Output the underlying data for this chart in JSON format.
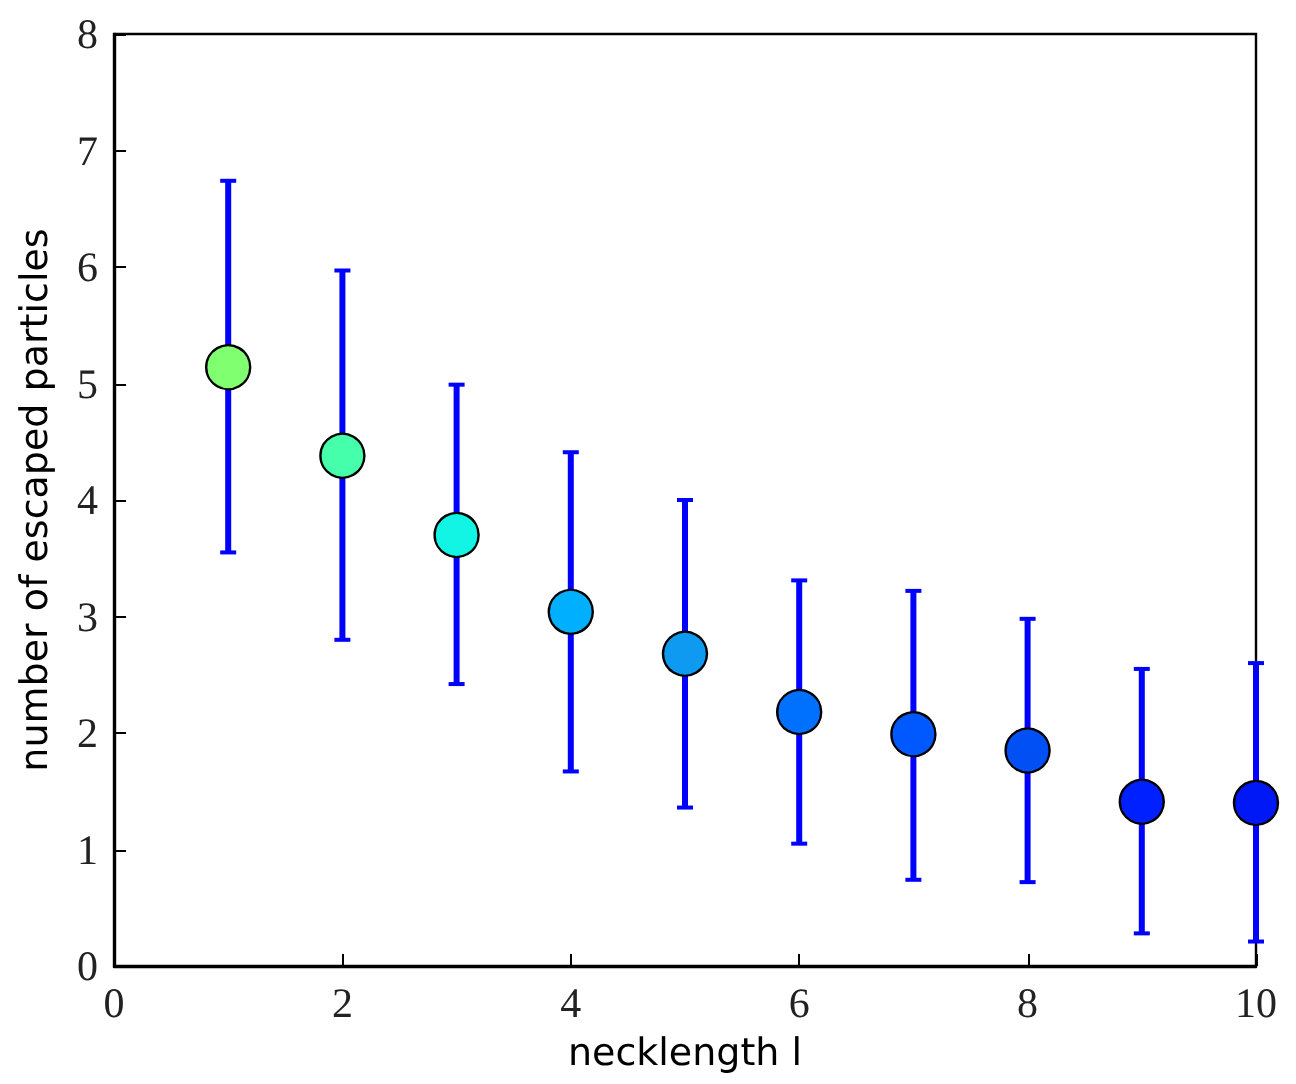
{
  "chart_data": {
    "type": "scatter",
    "xlabel": "necklength l",
    "ylabel": "number of escaped particles",
    "x": [
      1,
      2,
      3,
      4,
      5,
      6,
      7,
      8,
      9,
      10
    ],
    "values": [
      5.14,
      4.38,
      3.7,
      3.04,
      2.68,
      2.18,
      1.99,
      1.85,
      1.41,
      1.4
    ],
    "errors": [
      [
        3.55,
        6.74
      ],
      [
        2.8,
        5.97
      ],
      [
        2.42,
        4.99
      ],
      [
        1.67,
        4.41
      ],
      [
        1.36,
        4.0
      ],
      [
        1.05,
        3.31
      ],
      [
        0.74,
        3.22
      ],
      [
        0.72,
        2.98
      ],
      [
        0.28,
        2.55
      ],
      [
        0.21,
        2.6
      ]
    ],
    "colors": [
      "#80ff70",
      "#45ffaa",
      "#12f5e5",
      "#00b0ff",
      "#0e9af0",
      "#0070ff",
      "#0058ff",
      "#0050f5",
      "#0020ff",
      "#0018f5"
    ],
    "marker": "circle",
    "xlim": [
      0,
      10
    ],
    "xticks": [
      0,
      2,
      4,
      6,
      8,
      10
    ],
    "ylim": [
      0,
      8
    ],
    "yticks": [
      0,
      1,
      2,
      3,
      4,
      5,
      6,
      7,
      8
    ],
    "grid": false
  }
}
